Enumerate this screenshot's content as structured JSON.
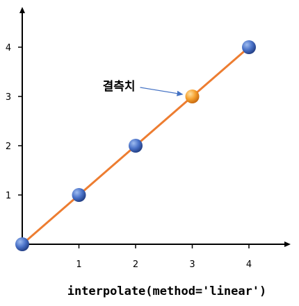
{
  "chart_data": {
    "type": "line",
    "x": [
      0,
      1,
      2,
      3,
      4
    ],
    "series": [
      {
        "values": [
          0,
          1,
          2,
          3,
          4
        ]
      }
    ],
    "x_ticks": [
      "1",
      "2",
      "3",
      "4"
    ],
    "y_ticks": [
      "1",
      "2",
      "3",
      "4"
    ],
    "missing_point": {
      "x": 3,
      "y": 3
    },
    "annotation": "결측치",
    "caption": "interpolate(method='linear')",
    "xlim": [
      0,
      4.6
    ],
    "ylim": [
      0,
      4.8
    ],
    "grid": false,
    "colors": {
      "line": "#ED7D31",
      "point": "#4472C4",
      "missing_point": "#F4A53B",
      "arrow": "#4472C4",
      "axis": "#000000"
    }
  }
}
